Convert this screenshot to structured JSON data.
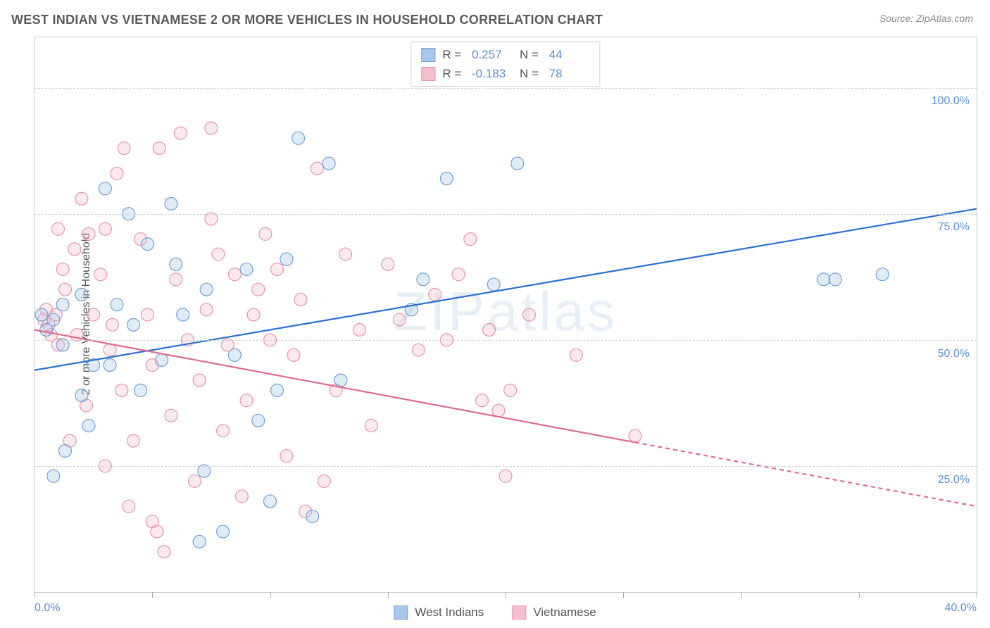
{
  "title": "WEST INDIAN VS VIETNAMESE 2 OR MORE VEHICLES IN HOUSEHOLD CORRELATION CHART",
  "source": "Source: ZipAtlas.com",
  "watermark": "ZIPatlas",
  "y_axis_label": "2 or more Vehicles in Household",
  "chart": {
    "type": "scatter",
    "xlim": [
      0,
      40
    ],
    "ylim": [
      0,
      110
    ],
    "y_gridlines": [
      25,
      50,
      75,
      100
    ],
    "y_tick_labels": [
      "25.0%",
      "50.0%",
      "75.0%",
      "100.0%"
    ],
    "x_tick_positions": [
      0,
      5,
      10,
      15,
      20,
      25,
      30,
      35,
      40
    ],
    "x_tick_labels": {
      "left": "0.0%",
      "right": "40.0%"
    },
    "grid_color": "#d0d0d0",
    "background_color": "#ffffff",
    "marker_radius": 9,
    "marker_stroke_width": 1.2,
    "marker_fill_opacity": 0.35,
    "trend_line_width": 2.2,
    "series": [
      {
        "name": "West Indians",
        "fill_color": "#a7c7ec",
        "stroke_color": "#6f9fd8",
        "line_color": "#2a6fd6",
        "R": "0.257",
        "N": "44",
        "trend": {
          "x1": 0,
          "y1": 44,
          "x2": 40,
          "y2": 76,
          "dash_from_x": null
        },
        "points": [
          [
            0.3,
            55
          ],
          [
            0.5,
            52
          ],
          [
            0.8,
            54
          ],
          [
            0.8,
            23
          ],
          [
            1.2,
            49
          ],
          [
            1.2,
            57
          ],
          [
            1.3,
            28
          ],
          [
            2.0,
            39
          ],
          [
            2.0,
            59
          ],
          [
            2.3,
            33
          ],
          [
            2.5,
            45
          ],
          [
            3.0,
            80
          ],
          [
            3.2,
            45
          ],
          [
            3.5,
            57
          ],
          [
            4.0,
            75
          ],
          [
            4.2,
            53
          ],
          [
            4.5,
            40
          ],
          [
            4.8,
            69
          ],
          [
            5.4,
            46
          ],
          [
            5.8,
            77
          ],
          [
            6.0,
            65
          ],
          [
            6.3,
            55
          ],
          [
            7.0,
            10
          ],
          [
            7.2,
            24
          ],
          [
            7.3,
            60
          ],
          [
            8.0,
            12
          ],
          [
            8.5,
            47
          ],
          [
            9.0,
            64
          ],
          [
            9.5,
            34
          ],
          [
            10.0,
            18
          ],
          [
            10.3,
            40
          ],
          [
            10.7,
            66
          ],
          [
            11.2,
            90
          ],
          [
            11.8,
            15
          ],
          [
            12.5,
            85
          ],
          [
            13.0,
            42
          ],
          [
            16.0,
            56
          ],
          [
            16.5,
            62
          ],
          [
            17.5,
            82
          ],
          [
            19.5,
            61
          ],
          [
            20.5,
            85
          ],
          [
            33.5,
            62
          ],
          [
            34.0,
            62
          ],
          [
            36.0,
            63
          ]
        ]
      },
      {
        "name": "Vietnamese",
        "fill_color": "#f5bfcd",
        "stroke_color": "#e793aa",
        "line_color": "#e06a8c",
        "R": "-0.183",
        "N": "78",
        "trend": {
          "x1": 0,
          "y1": 52,
          "x2": 40,
          "y2": 17,
          "dash_from_x": 25.5
        },
        "points": [
          [
            0.4,
            54
          ],
          [
            0.5,
            56
          ],
          [
            0.6,
            53
          ],
          [
            0.7,
            51
          ],
          [
            0.9,
            55
          ],
          [
            1.0,
            49
          ],
          [
            1.0,
            72
          ],
          [
            1.2,
            64
          ],
          [
            1.3,
            60
          ],
          [
            1.5,
            30
          ],
          [
            1.7,
            68
          ],
          [
            1.8,
            51
          ],
          [
            2.0,
            78
          ],
          [
            2.2,
            37
          ],
          [
            2.3,
            71
          ],
          [
            2.5,
            55
          ],
          [
            2.8,
            63
          ],
          [
            3.0,
            72
          ],
          [
            3.0,
            25
          ],
          [
            3.2,
            48
          ],
          [
            3.3,
            53
          ],
          [
            3.5,
            83
          ],
          [
            3.7,
            40
          ],
          [
            4.0,
            17
          ],
          [
            4.2,
            30
          ],
          [
            4.5,
            70
          ],
          [
            4.8,
            55
          ],
          [
            5.0,
            45
          ],
          [
            5.0,
            14
          ],
          [
            5.2,
            12
          ],
          [
            5.5,
            8
          ],
          [
            5.8,
            35
          ],
          [
            6.0,
            62
          ],
          [
            6.2,
            91
          ],
          [
            6.5,
            50
          ],
          [
            6.8,
            22
          ],
          [
            7.0,
            42
          ],
          [
            7.3,
            56
          ],
          [
            7.5,
            74
          ],
          [
            7.8,
            67
          ],
          [
            8.0,
            32
          ],
          [
            8.2,
            49
          ],
          [
            8.5,
            63
          ],
          [
            8.8,
            19
          ],
          [
            9.0,
            38
          ],
          [
            9.3,
            55
          ],
          [
            9.5,
            60
          ],
          [
            9.8,
            71
          ],
          [
            10.0,
            50
          ],
          [
            10.3,
            64
          ],
          [
            10.7,
            27
          ],
          [
            11.0,
            47
          ],
          [
            11.3,
            58
          ],
          [
            11.5,
            16
          ],
          [
            12.0,
            84
          ],
          [
            12.3,
            22
          ],
          [
            12.8,
            40
          ],
          [
            13.2,
            67
          ],
          [
            13.8,
            52
          ],
          [
            14.3,
            33
          ],
          [
            15.0,
            65
          ],
          [
            15.5,
            54
          ],
          [
            16.3,
            48
          ],
          [
            17.0,
            59
          ],
          [
            17.5,
            50
          ],
          [
            18.0,
            63
          ],
          [
            18.5,
            70
          ],
          [
            19.0,
            38
          ],
          [
            19.3,
            52
          ],
          [
            19.7,
            36
          ],
          [
            20.2,
            40
          ],
          [
            21.0,
            55
          ],
          [
            20.0,
            23
          ],
          [
            23.0,
            47
          ],
          [
            25.5,
            31
          ],
          [
            7.5,
            92
          ],
          [
            5.3,
            88
          ],
          [
            3.8,
            88
          ]
        ]
      }
    ]
  },
  "legend": {
    "series1_label": "West Indians",
    "series2_label": "Vietnamese"
  }
}
